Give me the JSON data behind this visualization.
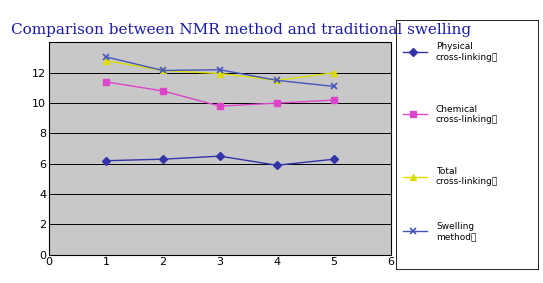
{
  "title": "Comparison between NMR method and traditional swelling",
  "x": [
    1,
    2,
    3,
    4,
    5
  ],
  "physical": [
    6.2,
    6.3,
    6.5,
    5.9,
    6.3
  ],
  "chemical": [
    11.4,
    10.8,
    9.8,
    10.0,
    10.2
  ],
  "total": [
    12.8,
    12.15,
    11.95,
    11.5,
    12.0
  ],
  "swelling": [
    13.05,
    12.15,
    12.2,
    11.5,
    11.1
  ],
  "physical_color": "#3333aa",
  "chemical_color": "#dd44cc",
  "total_color": "#dddd00",
  "swelling_color": "#4455bb",
  "xlim": [
    0,
    6
  ],
  "ylim": [
    0,
    14
  ],
  "yticks": [
    0,
    2,
    4,
    6,
    8,
    10,
    12
  ],
  "xticks": [
    0,
    1,
    2,
    3,
    4,
    5,
    6
  ],
  "bg_color": "#c8c8c8",
  "legend_labels": [
    "Physical\ncross-linking。",
    "Chemical\ncross-linking。",
    "Total\ncross-linking。",
    "Swelling\nmethod。"
  ],
  "title_fontsize": 11,
  "title_color": "#1a1aaa"
}
